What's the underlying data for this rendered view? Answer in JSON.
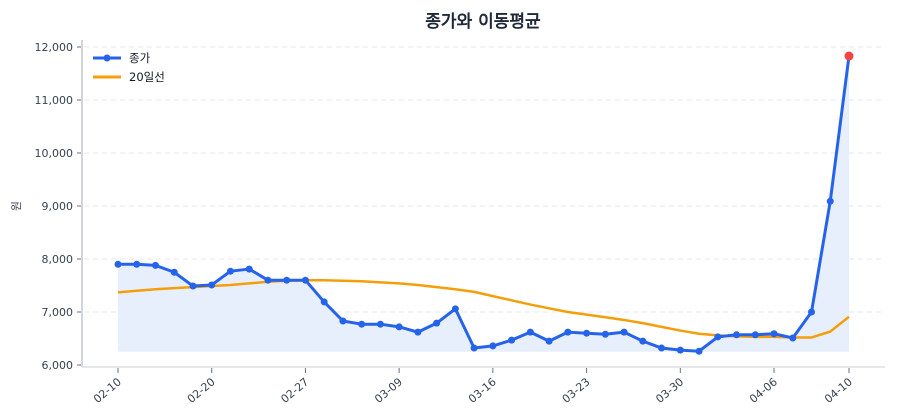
{
  "chart_data": {
    "type": "line",
    "title": "종가와 이동평균",
    "xlabel": "",
    "ylabel": "원",
    "ylim": [
      6000,
      12000
    ],
    "yticks": [
      6000,
      7000,
      8000,
      9000,
      10000,
      11000,
      12000
    ],
    "ytick_labels": [
      "6,000",
      "7,000",
      "8,000",
      "9,000",
      "10,000",
      "11,000",
      "12,000"
    ],
    "xtick_labels": [
      {
        "index": 0,
        "label": "02-10"
      },
      {
        "index": 5,
        "label": "02-20"
      },
      {
        "index": 10,
        "label": "02-27"
      },
      {
        "index": 15,
        "label": "03-09"
      },
      {
        "index": 20,
        "label": "03-16"
      },
      {
        "index": 25,
        "label": "03-23"
      },
      {
        "index": 30,
        "label": "03-30"
      },
      {
        "index": 35,
        "label": "04-06"
      },
      {
        "index": 39,
        "label": "04-10"
      }
    ],
    "grid": true,
    "legend_position": "upper left",
    "series": [
      {
        "name": "종가",
        "color": "#2563eb",
        "marker": "circle",
        "fill": "#e8effc",
        "values": [
          7900,
          7900,
          7880,
          7750,
          7490,
          7510,
          7770,
          7810,
          7600,
          7600,
          7600,
          7190,
          6830,
          6770,
          6770,
          6720,
          6620,
          6790,
          7060,
          6320,
          6360,
          6470,
          6620,
          6450,
          6620,
          6600,
          6580,
          6620,
          6450,
          6320,
          6280,
          6260,
          6530,
          6570,
          6570,
          6590,
          6510,
          7000,
          9090,
          11830
        ],
        "last_point_color": "#ef4444"
      },
      {
        "name": "20일선",
        "color": "#f59e0b",
        "values": [
          7370,
          7400,
          7430,
          7450,
          7470,
          7490,
          7510,
          7540,
          7570,
          7590,
          7600,
          7600,
          7590,
          7580,
          7560,
          7540,
          7510,
          7470,
          7430,
          7380,
          7300,
          7220,
          7140,
          7070,
          7000,
          6950,
          6900,
          6850,
          6790,
          6720,
          6650,
          6590,
          6560,
          6540,
          6530,
          6530,
          6520,
          6520,
          6630,
          6910
        ]
      }
    ]
  }
}
